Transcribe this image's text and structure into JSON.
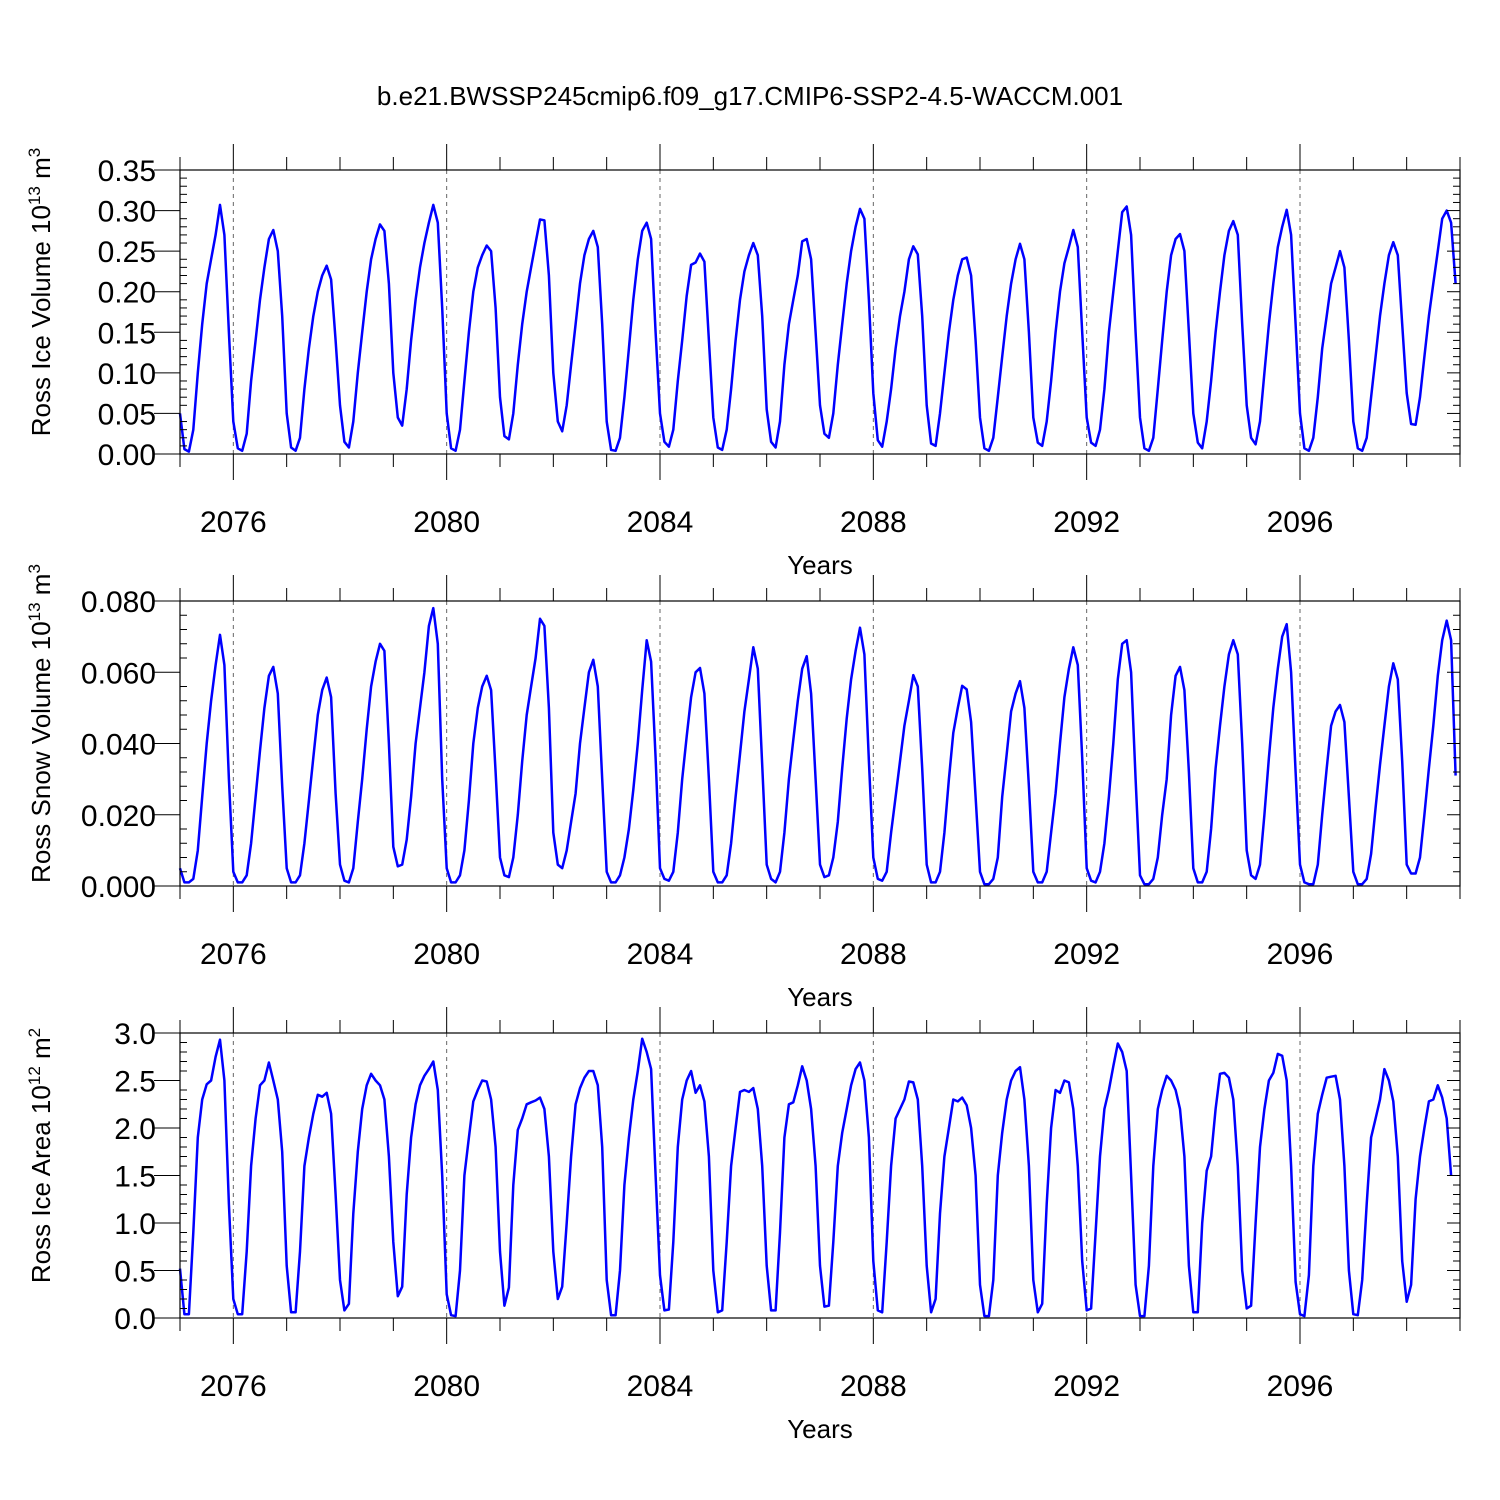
{
  "figure": {
    "title": "b.e21.BWSSP245cmip6.f09_g17.CMIP6-SSP2-4.5-WACCM.001"
  },
  "colors": {
    "series": "#0000ff",
    "axes": "#000000",
    "gridline": "#666666"
  },
  "chart_data": [
    {
      "type": "line",
      "name": "ross-ice-volume",
      "ylabel_text": "Ross Ice Volume 10",
      "ylabel_exp": "13",
      "ylabel_unit": "m",
      "ylabel_unit_exp": "3",
      "xlabel": "Years",
      "ylim": [
        0,
        0.35
      ],
      "yticks": [
        0.0,
        0.05,
        0.1,
        0.15,
        0.2,
        0.25,
        0.3,
        0.35
      ],
      "ytick_labels": [
        "0.00",
        "0.05",
        "0.10",
        "0.15",
        "0.20",
        "0.25",
        "0.30",
        "0.35"
      ],
      "xlim": [
        2075,
        2099
      ],
      "xticks": [
        2076,
        2080,
        2084,
        2088,
        2092,
        2096
      ],
      "xtick_labels": [
        "2076",
        "2080",
        "2084",
        "2088",
        "2092",
        "2096"
      ],
      "grid": "dashed vertical lines at labeled years",
      "series": [
        {
          "x_start": 2075.0,
          "x_step": 0.083333,
          "values": [
            0.05,
            0.006,
            0.003,
            0.03,
            0.1,
            0.16,
            0.21,
            0.24,
            0.27,
            0.307,
            0.27,
            0.15,
            0.04,
            0.007,
            0.004,
            0.025,
            0.09,
            0.14,
            0.19,
            0.23,
            0.265,
            0.276,
            0.25,
            0.17,
            0.05,
            0.008,
            0.004,
            0.02,
            0.08,
            0.13,
            0.17,
            0.2,
            0.22,
            0.232,
            0.215,
            0.14,
            0.06,
            0.015,
            0.008,
            0.04,
            0.1,
            0.15,
            0.2,
            0.24,
            0.265,
            0.283,
            0.275,
            0.21,
            0.1,
            0.045,
            0.035,
            0.08,
            0.14,
            0.19,
            0.23,
            0.26,
            0.285,
            0.307,
            0.285,
            0.18,
            0.05,
            0.007,
            0.004,
            0.03,
            0.09,
            0.15,
            0.2,
            0.23,
            0.245,
            0.257,
            0.25,
            0.18,
            0.07,
            0.022,
            0.018,
            0.05,
            0.11,
            0.16,
            0.2,
            0.23,
            0.26,
            0.289,
            0.288,
            0.22,
            0.1,
            0.04,
            0.028,
            0.06,
            0.11,
            0.16,
            0.21,
            0.245,
            0.265,
            0.275,
            0.255,
            0.16,
            0.04,
            0.005,
            0.004,
            0.02,
            0.07,
            0.13,
            0.19,
            0.24,
            0.275,
            0.285,
            0.265,
            0.15,
            0.05,
            0.015,
            0.009,
            0.03,
            0.09,
            0.14,
            0.195,
            0.233,
            0.236,
            0.247,
            0.237,
            0.14,
            0.045,
            0.008,
            0.005,
            0.03,
            0.08,
            0.14,
            0.19,
            0.225,
            0.245,
            0.26,
            0.245,
            0.17,
            0.055,
            0.015,
            0.008,
            0.04,
            0.11,
            0.16,
            0.19,
            0.22,
            0.262,
            0.265,
            0.24,
            0.15,
            0.06,
            0.025,
            0.02,
            0.05,
            0.11,
            0.16,
            0.21,
            0.25,
            0.28,
            0.302,
            0.29,
            0.19,
            0.075,
            0.017,
            0.009,
            0.04,
            0.08,
            0.13,
            0.17,
            0.2,
            0.24,
            0.256,
            0.246,
            0.17,
            0.06,
            0.013,
            0.01,
            0.05,
            0.1,
            0.15,
            0.19,
            0.22,
            0.24,
            0.242,
            0.22,
            0.14,
            0.045,
            0.007,
            0.004,
            0.02,
            0.07,
            0.12,
            0.17,
            0.21,
            0.24,
            0.259,
            0.24,
            0.15,
            0.045,
            0.014,
            0.01,
            0.04,
            0.09,
            0.15,
            0.2,
            0.235,
            0.255,
            0.276,
            0.255,
            0.15,
            0.045,
            0.014,
            0.01,
            0.03,
            0.08,
            0.15,
            0.2,
            0.25,
            0.298,
            0.305,
            0.27,
            0.15,
            0.045,
            0.007,
            0.004,
            0.02,
            0.08,
            0.14,
            0.2,
            0.245,
            0.265,
            0.271,
            0.25,
            0.15,
            0.05,
            0.014,
            0.007,
            0.04,
            0.09,
            0.15,
            0.2,
            0.245,
            0.275,
            0.287,
            0.27,
            0.16,
            0.06,
            0.02,
            0.012,
            0.04,
            0.1,
            0.16,
            0.21,
            0.255,
            0.28,
            0.301,
            0.27,
            0.16,
            0.05,
            0.007,
            0.004,
            0.02,
            0.07,
            0.13,
            0.17,
            0.21,
            0.23,
            0.25,
            0.23,
            0.14,
            0.04,
            0.007,
            0.004,
            0.02,
            0.07,
            0.12,
            0.17,
            0.21,
            0.245,
            0.261,
            0.245,
            0.16,
            0.075,
            0.037,
            0.036,
            0.07,
            0.12,
            0.17,
            0.21,
            0.25,
            0.29,
            0.3,
            0.285,
            0.21
          ]
        }
      ]
    },
    {
      "type": "line",
      "name": "ross-snow-volume",
      "ylabel_text": "Ross Snow Volume 10",
      "ylabel_exp": "13",
      "ylabel_unit": "m",
      "ylabel_unit_exp": "3",
      "xlabel": "Years",
      "ylim": [
        0,
        0.08
      ],
      "yticks": [
        0.0,
        0.02,
        0.04,
        0.06,
        0.08
      ],
      "ytick_labels": [
        "0.000",
        "0.020",
        "0.040",
        "0.060",
        "0.080"
      ],
      "xlim": [
        2075,
        2099
      ],
      "xticks": [
        2076,
        2080,
        2084,
        2088,
        2092,
        2096
      ],
      "xtick_labels": [
        "2076",
        "2080",
        "2084",
        "2088",
        "2092",
        "2096"
      ],
      "grid": "dashed vertical lines at labeled years",
      "series": [
        {
          "x_start": 2075.0,
          "x_step": 0.083333,
          "values": [
            0.005,
            0.001,
            0.001,
            0.002,
            0.01,
            0.025,
            0.04,
            0.052,
            0.062,
            0.0705,
            0.062,
            0.03,
            0.004,
            0.001,
            0.001,
            0.003,
            0.012,
            0.025,
            0.038,
            0.05,
            0.059,
            0.0615,
            0.054,
            0.028,
            0.005,
            0.001,
            0.001,
            0.003,
            0.012,
            0.024,
            0.036,
            0.048,
            0.055,
            0.0585,
            0.053,
            0.026,
            0.006,
            0.0015,
            0.001,
            0.005,
            0.018,
            0.03,
            0.044,
            0.056,
            0.063,
            0.068,
            0.066,
            0.04,
            0.011,
            0.0055,
            0.006,
            0.013,
            0.025,
            0.04,
            0.05,
            0.06,
            0.073,
            0.078,
            0.068,
            0.03,
            0.005,
            0.001,
            0.001,
            0.003,
            0.01,
            0.024,
            0.04,
            0.05,
            0.056,
            0.059,
            0.055,
            0.032,
            0.008,
            0.003,
            0.0025,
            0.008,
            0.02,
            0.035,
            0.048,
            0.056,
            0.064,
            0.075,
            0.073,
            0.05,
            0.015,
            0.006,
            0.005,
            0.01,
            0.018,
            0.026,
            0.04,
            0.05,
            0.06,
            0.0635,
            0.056,
            0.03,
            0.004,
            0.001,
            0.001,
            0.003,
            0.008,
            0.016,
            0.027,
            0.04,
            0.055,
            0.069,
            0.063,
            0.036,
            0.005,
            0.002,
            0.0015,
            0.004,
            0.015,
            0.03,
            0.042,
            0.053,
            0.06,
            0.0612,
            0.054,
            0.03,
            0.004,
            0.001,
            0.001,
            0.003,
            0.012,
            0.025,
            0.037,
            0.049,
            0.058,
            0.067,
            0.061,
            0.034,
            0.006,
            0.002,
            0.001,
            0.004,
            0.015,
            0.03,
            0.041,
            0.052,
            0.061,
            0.0645,
            0.054,
            0.03,
            0.006,
            0.0025,
            0.003,
            0.008,
            0.018,
            0.033,
            0.047,
            0.058,
            0.066,
            0.0725,
            0.065,
            0.035,
            0.008,
            0.002,
            0.0015,
            0.004,
            0.015,
            0.025,
            0.035,
            0.045,
            0.052,
            0.0592,
            0.056,
            0.033,
            0.006,
            0.001,
            0.001,
            0.004,
            0.015,
            0.03,
            0.043,
            0.05,
            0.0562,
            0.0552,
            0.046,
            0.025,
            0.004,
            0.0005,
            0.0005,
            0.002,
            0.008,
            0.025,
            0.037,
            0.049,
            0.054,
            0.0575,
            0.05,
            0.028,
            0.004,
            0.001,
            0.001,
            0.004,
            0.015,
            0.026,
            0.04,
            0.053,
            0.061,
            0.067,
            0.062,
            0.036,
            0.005,
            0.0015,
            0.001,
            0.004,
            0.012,
            0.025,
            0.04,
            0.058,
            0.068,
            0.069,
            0.06,
            0.03,
            0.003,
            0.0005,
            0.0005,
            0.002,
            0.008,
            0.02,
            0.03,
            0.048,
            0.059,
            0.0615,
            0.055,
            0.032,
            0.005,
            0.001,
            0.001,
            0.004,
            0.016,
            0.033,
            0.045,
            0.056,
            0.065,
            0.069,
            0.065,
            0.04,
            0.01,
            0.003,
            0.002,
            0.006,
            0.02,
            0.036,
            0.05,
            0.061,
            0.07,
            0.0735,
            0.06,
            0.032,
            0.006,
            0.001,
            0.0005,
            0.0005,
            0.006,
            0.02,
            0.033,
            0.045,
            0.049,
            0.0508,
            0.046,
            0.025,
            0.004,
            0.0005,
            0.0005,
            0.002,
            0.009,
            0.022,
            0.034,
            0.045,
            0.056,
            0.0625,
            0.058,
            0.035,
            0.006,
            0.0035,
            0.0035,
            0.008,
            0.02,
            0.033,
            0.045,
            0.059,
            0.069,
            0.0745,
            0.069,
            0.031
          ]
        }
      ]
    },
    {
      "type": "line",
      "name": "ross-ice-area",
      "ylabel_text": "Ross Ice Area 10",
      "ylabel_exp": "12",
      "ylabel_unit": "m",
      "ylabel_unit_exp": "2",
      "xlabel": "Years",
      "ylim": [
        0,
        3.0
      ],
      "yticks": [
        0.0,
        0.5,
        1.0,
        1.5,
        2.0,
        2.5,
        3.0
      ],
      "ytick_labels": [
        "0.0",
        "0.5",
        "1.0",
        "1.5",
        "2.0",
        "2.5",
        "3.0"
      ],
      "xlim": [
        2075,
        2099
      ],
      "xticks": [
        2076,
        2080,
        2084,
        2088,
        2092,
        2096
      ],
      "xtick_labels": [
        "2076",
        "2080",
        "2084",
        "2088",
        "2092",
        "2096"
      ],
      "grid": "dashed vertical lines at labeled years",
      "series": [
        {
          "x_start": 2075.0,
          "x_step": 0.083333,
          "values": [
            0.52,
            0.04,
            0.04,
            0.9,
            1.9,
            2.3,
            2.46,
            2.5,
            2.75,
            2.93,
            2.5,
            1.2,
            0.2,
            0.04,
            0.04,
            0.7,
            1.6,
            2.1,
            2.45,
            2.5,
            2.69,
            2.5,
            2.3,
            1.75,
            0.55,
            0.06,
            0.06,
            0.7,
            1.6,
            1.9,
            2.15,
            2.35,
            2.33,
            2.37,
            2.15,
            1.3,
            0.4,
            0.08,
            0.15,
            1.1,
            1.75,
            2.2,
            2.45,
            2.57,
            2.5,
            2.45,
            2.3,
            1.7,
            0.8,
            0.23,
            0.33,
            1.3,
            1.9,
            2.25,
            2.45,
            2.55,
            2.62,
            2.7,
            2.4,
            1.5,
            0.25,
            0.03,
            0.02,
            0.5,
            1.5,
            1.9,
            2.28,
            2.4,
            2.5,
            2.49,
            2.3,
            1.8,
            0.7,
            0.13,
            0.32,
            1.4,
            1.98,
            2.1,
            2.25,
            2.27,
            2.29,
            2.32,
            2.2,
            1.7,
            0.7,
            0.2,
            0.33,
            1.0,
            1.7,
            2.25,
            2.42,
            2.53,
            2.6,
            2.6,
            2.45,
            1.8,
            0.4,
            0.03,
            0.03,
            0.5,
            1.4,
            1.9,
            2.3,
            2.6,
            2.94,
            2.8,
            2.62,
            1.5,
            0.45,
            0.08,
            0.09,
            0.8,
            1.8,
            2.3,
            2.5,
            2.6,
            2.37,
            2.45,
            2.28,
            1.7,
            0.5,
            0.06,
            0.08,
            0.8,
            1.6,
            2.0,
            2.38,
            2.4,
            2.38,
            2.42,
            2.2,
            1.6,
            0.55,
            0.08,
            0.08,
            0.9,
            1.9,
            2.25,
            2.27,
            2.45,
            2.65,
            2.5,
            2.2,
            1.6,
            0.55,
            0.12,
            0.13,
            0.8,
            1.6,
            1.95,
            2.2,
            2.45,
            2.62,
            2.69,
            2.5,
            1.9,
            0.6,
            0.08,
            0.06,
            0.8,
            1.6,
            2.1,
            2.2,
            2.3,
            2.49,
            2.48,
            2.3,
            1.6,
            0.55,
            0.06,
            0.2,
            1.1,
            1.7,
            2.0,
            2.3,
            2.28,
            2.32,
            2.24,
            2.0,
            1.5,
            0.35,
            0.02,
            0.02,
            0.4,
            1.5,
            1.95,
            2.3,
            2.5,
            2.6,
            2.64,
            2.3,
            1.6,
            0.4,
            0.06,
            0.15,
            1.2,
            2.0,
            2.4,
            2.37,
            2.5,
            2.48,
            2.2,
            1.6,
            0.6,
            0.08,
            0.1,
            0.9,
            1.7,
            2.2,
            2.4,
            2.65,
            2.89,
            2.8,
            2.6,
            1.5,
            0.35,
            0.02,
            0.02,
            0.55,
            1.6,
            2.2,
            2.4,
            2.55,
            2.5,
            2.4,
            2.2,
            1.7,
            0.55,
            0.06,
            0.06,
            1.0,
            1.55,
            1.7,
            2.2,
            2.57,
            2.58,
            2.53,
            2.3,
            1.6,
            0.5,
            0.1,
            0.13,
            1.0,
            1.8,
            2.2,
            2.5,
            2.58,
            2.78,
            2.76,
            2.5,
            1.6,
            0.38,
            0.04,
            0.02,
            0.45,
            1.6,
            2.15,
            2.35,
            2.53,
            2.54,
            2.55,
            2.3,
            1.6,
            0.5,
            0.04,
            0.03,
            0.4,
            1.2,
            1.9,
            2.1,
            2.3,
            2.62,
            2.5,
            2.28,
            1.7,
            0.6,
            0.17,
            0.35,
            1.25,
            1.7,
            2.0,
            2.28,
            2.3,
            2.45,
            2.32,
            2.1,
            1.5
          ]
        }
      ]
    }
  ]
}
